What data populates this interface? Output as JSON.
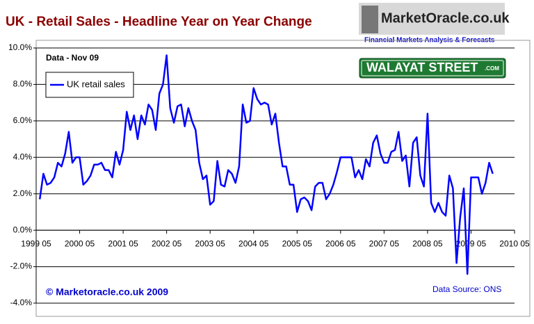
{
  "chart_data": {
    "type": "line",
    "title": "UK - Retail Sales - Headline Year on Year Change",
    "annotations": {
      "data_note": "Data - Nov 09",
      "copyright": "© Marketoracle.co.uk 2009",
      "source": "Data Source: ONS"
    },
    "logos": {
      "site": "MarketOracle.co.uk",
      "tagline": "Financial Markets Analysis & Forecasts",
      "sign": "WALAYAT STREET",
      "sign_suffix": ".COM"
    },
    "legend": "upper left",
    "grid": true,
    "x": [
      "1999-06",
      "1999-07",
      "1999-08",
      "1999-09",
      "1999-10",
      "1999-11",
      "1999-12",
      "2000-01",
      "2000-02",
      "2000-03",
      "2000-04",
      "2000-05",
      "2000-06",
      "2000-07",
      "2000-08",
      "2000-09",
      "2000-10",
      "2000-11",
      "2000-12",
      "2001-01",
      "2001-02",
      "2001-03",
      "2001-04",
      "2001-05",
      "2001-06",
      "2001-07",
      "2001-08",
      "2001-09",
      "2001-10",
      "2001-11",
      "2001-12",
      "2002-01",
      "2002-02",
      "2002-03",
      "2002-04",
      "2002-05",
      "2002-06",
      "2002-07",
      "2002-08",
      "2002-09",
      "2002-10",
      "2002-11",
      "2002-12",
      "2003-01",
      "2003-02",
      "2003-03",
      "2003-04",
      "2003-05",
      "2003-06",
      "2003-07",
      "2003-08",
      "2003-09",
      "2003-10",
      "2003-11",
      "2003-12",
      "2004-01",
      "2004-02",
      "2004-03",
      "2004-04",
      "2004-05",
      "2004-06",
      "2004-07",
      "2004-08",
      "2004-09",
      "2004-10",
      "2004-11",
      "2004-12",
      "2005-01",
      "2005-02",
      "2005-03",
      "2005-04",
      "2005-05",
      "2005-06",
      "2005-07",
      "2005-08",
      "2005-09",
      "2005-10",
      "2005-11",
      "2005-12",
      "2006-01",
      "2006-02",
      "2006-03",
      "2006-04",
      "2006-05",
      "2006-06",
      "2006-07",
      "2006-08",
      "2006-09",
      "2006-10",
      "2006-11",
      "2006-12",
      "2007-01",
      "2007-02",
      "2007-03",
      "2007-04",
      "2007-05",
      "2007-06",
      "2007-07",
      "2007-08",
      "2007-09",
      "2007-10",
      "2007-11",
      "2007-12",
      "2008-01",
      "2008-02",
      "2008-03",
      "2008-04",
      "2008-05",
      "2008-06",
      "2008-07",
      "2008-08",
      "2008-09",
      "2008-10",
      "2008-11",
      "2008-12",
      "2009-01",
      "2009-02",
      "2009-03",
      "2009-04",
      "2009-05",
      "2009-06",
      "2009-07",
      "2009-08",
      "2009-09",
      "2009-10",
      "2009-11"
    ],
    "series": [
      {
        "name": "UK retail sales",
        "color": "#0000ff",
        "values": [
          1.7,
          3.1,
          2.5,
          2.6,
          2.9,
          3.7,
          3.5,
          4.2,
          5.4,
          3.7,
          4.0,
          4.0,
          2.5,
          2.7,
          3.0,
          3.6,
          3.6,
          3.7,
          3.3,
          3.3,
          2.9,
          4.3,
          3.6,
          4.4,
          6.5,
          5.5,
          6.3,
          5.0,
          6.3,
          5.8,
          6.9,
          6.6,
          5.5,
          7.5,
          8.0,
          9.6,
          6.7,
          5.9,
          6.8,
          6.9,
          5.7,
          6.7,
          6.0,
          5.5,
          3.7,
          2.8,
          3.0,
          1.4,
          1.6,
          3.8,
          2.5,
          2.4,
          3.3,
          3.1,
          2.6,
          3.5,
          6.9,
          5.9,
          6.0,
          7.8,
          7.2,
          6.9,
          7.0,
          6.9,
          5.8,
          6.4,
          4.8,
          3.5,
          3.5,
          2.5,
          2.5,
          1.0,
          1.7,
          1.8,
          1.6,
          1.1,
          2.4,
          2.6,
          2.6,
          1.7,
          2.0,
          2.5,
          3.2,
          4.0,
          4.0,
          4.0,
          4.0,
          2.9,
          3.3,
          2.8,
          3.9,
          3.5,
          4.8,
          5.2,
          4.2,
          3.7,
          3.7,
          4.3,
          4.4,
          5.4,
          3.8,
          4.1,
          2.4,
          4.8,
          5.1,
          3.0,
          2.4,
          6.4,
          1.5,
          1.0,
          1.5,
          1.0,
          0.8,
          3.0,
          2.3,
          -1.8,
          0.7,
          2.3,
          -2.4,
          2.9,
          2.9,
          2.9,
          2.0,
          2.6,
          3.7,
          3.1
        ]
      }
    ],
    "xlim": [
      "1999-05",
      "2010-05"
    ],
    "xticks": [
      {
        "value": "1999-05",
        "label": "1999 05"
      },
      {
        "value": "2000-05",
        "label": "2000 05"
      },
      {
        "value": "2001-05",
        "label": "2001 05"
      },
      {
        "value": "2002-05",
        "label": "2002 05"
      },
      {
        "value": "2003-05",
        "label": "2003 05"
      },
      {
        "value": "2004-05",
        "label": "2004 05"
      },
      {
        "value": "2005-05",
        "label": "2005 05"
      },
      {
        "value": "2006-05",
        "label": "2006 05"
      },
      {
        "value": "2007-05",
        "label": "2007 05"
      },
      {
        "value": "2008-05",
        "label": "2008 05"
      },
      {
        "value": "2009-05",
        "label": "2009 05"
      },
      {
        "value": "2010-05",
        "label": "2010 05"
      }
    ],
    "ylim": [
      -4,
      10
    ],
    "yticks": [
      {
        "value": -4,
        "label": "-4.0%"
      },
      {
        "value": -2,
        "label": "-2.0%"
      },
      {
        "value": 0,
        "label": "0.0%"
      },
      {
        "value": 2,
        "label": "2.0%"
      },
      {
        "value": 4,
        "label": "4.0%"
      },
      {
        "value": 6,
        "label": "6.0%"
      },
      {
        "value": 8,
        "label": "8.0%"
      },
      {
        "value": 10,
        "label": "10.0%"
      }
    ]
  }
}
